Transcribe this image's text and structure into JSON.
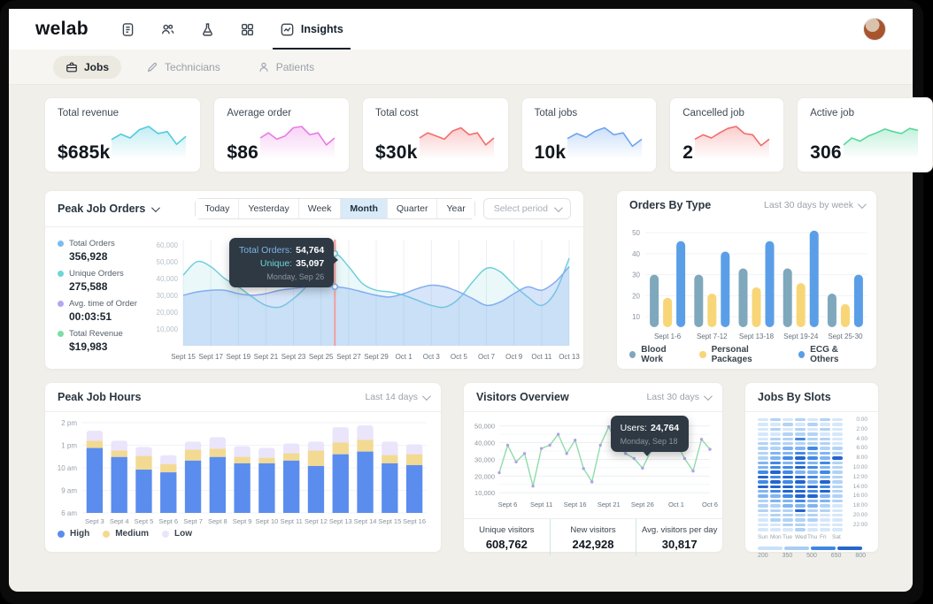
{
  "header": {
    "logo": "welab",
    "insights_label": "Insights"
  },
  "tabs": {
    "jobs": "Jobs",
    "technicians": "Technicians",
    "patients": "Patients"
  },
  "stats": [
    {
      "label": "Total revenue",
      "value": "$685k",
      "color": "#4FCBDE",
      "spark": [
        45,
        62,
        50,
        76,
        86,
        64,
        70,
        30,
        55
      ]
    },
    {
      "label": "Average order",
      "value": "$86",
      "color": "#E87BE4",
      "spark": [
        50,
        66,
        46,
        56,
        82,
        86,
        60,
        66,
        28,
        50
      ]
    },
    {
      "label": "Total cost",
      "value": "$30k",
      "color": "#F26D6D",
      "spark": [
        50,
        66,
        56,
        46,
        72,
        82,
        60,
        66,
        28,
        50
      ]
    },
    {
      "label": "Total jobs",
      "value": "10k",
      "color": "#6CA4F0",
      "spark": [
        48,
        64,
        52,
        72,
        82,
        60,
        66,
        24,
        46
      ]
    },
    {
      "label": "Cancelled job",
      "value": "2",
      "color": "#F26D6D",
      "spark": [
        46,
        60,
        50,
        66,
        80,
        86,
        64,
        60,
        26,
        46
      ]
    },
    {
      "label": "Active job",
      "value": "306",
      "color": "#59D69C",
      "spark": [
        28,
        50,
        40,
        56,
        66,
        78,
        70,
        64,
        80,
        74
      ]
    }
  ],
  "peak_job_orders": {
    "title": "Peak Job Orders",
    "periods": [
      "Today",
      "Yesterday",
      "Week",
      "Month",
      "Quarter",
      "Year"
    ],
    "active_period": "Month",
    "select_period": "Select period",
    "legend": [
      {
        "label": "Total Orders",
        "value": "356,928",
        "color": "#7CBCEC"
      },
      {
        "label": "Unique Orders",
        "value": "275,588",
        "color": "#6ED6D6"
      },
      {
        "label": "Avg. time of Order",
        "value": "00:03:51",
        "color": "#B5A6F2"
      },
      {
        "label": "Total Revenue",
        "value": "$19,983",
        "color": "#7FDCA4"
      }
    ],
    "tooltip": {
      "row1_label": "Total Orders:",
      "row1_value": "54,764",
      "row2_label": "Unique:",
      "row2_value": "35,097",
      "date": "Monday, Sep 26"
    }
  },
  "orders_by_type": {
    "title": "Orders By Type",
    "range_label": "Last 30 days by week"
  },
  "peak_job_hours": {
    "title": "Peak Job Hours",
    "range_label": "Last 14 days"
  },
  "visitors_overview": {
    "title": "Visitors Overview",
    "range_label": "Last 30 days",
    "tooltip": {
      "row1_label": "Users:",
      "row1_value": "24,764",
      "date": "Monday, Sep 18"
    },
    "footer": [
      {
        "label": "Unique visitors",
        "value": "608,762"
      },
      {
        "label": "New visitors",
        "value": "242,928"
      },
      {
        "label": "Avg. visitors per day",
        "value": "30,817"
      }
    ]
  },
  "jobs_by_slots": {
    "title": "Jobs By Slots"
  },
  "chart_data": [
    {
      "id": "peak-job-orders",
      "type": "area",
      "x_labels": [
        "Sept 15",
        "Sept 17",
        "Sept 19",
        "Sept 21",
        "Sept 23",
        "Sept 25",
        "Sept 27",
        "Sept 29",
        "Oct 1",
        "Oct 3",
        "Oct 5",
        "Oct 7",
        "Oct 9",
        "Oct 11",
        "Oct 13"
      ],
      "yticks": [
        10000,
        20000,
        30000,
        40000,
        50000,
        60000
      ],
      "ylim": [
        0,
        62000
      ],
      "marker_index": 11,
      "marker_color": "#F59C9C",
      "series": [
        {
          "name": "Total Orders",
          "color": "#6FCFDA",
          "fill": "rgba(111,207,218,0.15)",
          "values": [
            42000,
            50000,
            47000,
            40000,
            35000,
            29000,
            24000,
            23000,
            28000,
            36000,
            48000,
            54764,
            47000,
            37000,
            33000,
            32000,
            30000,
            27000,
            24000,
            23000,
            28000,
            38000,
            46000,
            44000,
            36000,
            29000,
            24000,
            32000,
            52000
          ]
        },
        {
          "name": "Unique Orders",
          "color": "#84ADF0",
          "fill": "rgba(132,173,240,0.32)",
          "values": [
            30000,
            32000,
            33000,
            33000,
            31000,
            30000,
            31000,
            33000,
            34000,
            35000,
            35000,
            35097,
            34000,
            32000,
            30000,
            29000,
            31000,
            34000,
            36000,
            35000,
            32000,
            28000,
            24000,
            26000,
            31000,
            35000,
            33000,
            38000,
            47000
          ]
        }
      ]
    },
    {
      "id": "orders-by-type",
      "type": "bar",
      "categories": [
        "Sept 1-6",
        "Sept 7-12",
        "Sept 13-18",
        "Sept 19-24",
        "Sept 25-30"
      ],
      "yticks": [
        10,
        20,
        30,
        40,
        50
      ],
      "ylim": [
        5,
        53
      ],
      "series": [
        {
          "name": "Blood Work",
          "color": "#7FA8BD",
          "values": [
            30,
            30,
            33,
            33,
            21
          ]
        },
        {
          "name": "Personal Packages",
          "color": "#F8D678",
          "values": [
            19,
            21,
            24,
            26,
            16
          ]
        },
        {
          "name": "ECG & Others",
          "color": "#5B9EE8",
          "values": [
            46,
            41,
            46,
            51,
            30
          ]
        }
      ]
    },
    {
      "id": "peak-job-hours",
      "type": "stacked-bar",
      "categories": [
        "Sept 3",
        "Sept 4",
        "Sept 5",
        "Sept 6",
        "Sept 7",
        "Sept 8",
        "Sept 9",
        "Sept 10",
        "Sept 11",
        "Sept 12",
        "Sept 13",
        "Sept 14",
        "Sept 15",
        "Sept 16"
      ],
      "y_labels": [
        "2 pm",
        "1 pm",
        "10 am",
        "9 am",
        "6 am"
      ],
      "series": [
        {
          "name": "High",
          "color": "#5B8DEE",
          "values": [
            72,
            62,
            48,
            45,
            58,
            62,
            55,
            55,
            58,
            52,
            65,
            68,
            55,
            53
          ]
        },
        {
          "name": "Medium",
          "color": "#F3DA93",
          "values": [
            8,
            7,
            15,
            9,
            12,
            9,
            7,
            6,
            8,
            17,
            13,
            13,
            9,
            12
          ]
        },
        {
          "name": "Low",
          "color": "#EAE5FA",
          "values": [
            11,
            11,
            10,
            10,
            9,
            13,
            12,
            11,
            11,
            10,
            17,
            16,
            15,
            11
          ]
        }
      ]
    },
    {
      "id": "visitors-overview",
      "type": "line",
      "x_labels": [
        "Sept 6",
        "Sept 11",
        "Sept 16",
        "Sept 21",
        "Sept 26",
        "Oct 1",
        "Oct 6"
      ],
      "yticks": [
        10000,
        20000,
        30000,
        40000,
        50000
      ],
      "ylim": [
        8000,
        53000
      ],
      "line_color": "#8FDCA8",
      "point_color": "#B49EE8",
      "values": [
        22000,
        38500,
        28500,
        33500,
        14000,
        36500,
        38500,
        45000,
        33500,
        41500,
        24500,
        16500,
        38500,
        49500,
        38500,
        33500,
        30500,
        24764,
        35000,
        36500,
        36000,
        40000,
        30500,
        23000,
        42000,
        36000
      ]
    },
    {
      "id": "jobs-by-slots",
      "type": "heatmap",
      "days": [
        "Sun",
        "Mon",
        "Tue",
        "Wed",
        "Thu",
        "Fri",
        "Sat"
      ],
      "hour_labels": [
        "0:00",
        "2:00",
        "4:00",
        "6:00",
        "8:00",
        "10:00",
        "12:00",
        "14:00",
        "16:00",
        "18:00",
        "20:00",
        "22:00"
      ],
      "scale": {
        "stops": [
          "200",
          "350",
          "500",
          "650",
          "800"
        ],
        "colors": [
          "#C9E1F9",
          "#A9CDF3",
          "#3F87E4",
          "#2566CE"
        ]
      },
      "values": [
        [
          250,
          300,
          250,
          350,
          250,
          300,
          250
        ],
        [
          220,
          250,
          300,
          250,
          300,
          250,
          220
        ],
        [
          250,
          300,
          250,
          300,
          250,
          300,
          250
        ],
        [
          220,
          250,
          300,
          350,
          300,
          250,
          220
        ],
        [
          250,
          300,
          350,
          650,
          300,
          350,
          250
        ],
        [
          300,
          350,
          400,
          350,
          400,
          300,
          250
        ],
        [
          300,
          400,
          450,
          500,
          650,
          400,
          300
        ],
        [
          350,
          450,
          500,
          650,
          500,
          450,
          300
        ],
        [
          400,
          500,
          650,
          700,
          650,
          500,
          700
        ],
        [
          450,
          650,
          500,
          650,
          500,
          650,
          350
        ],
        [
          500,
          550,
          650,
          700,
          650,
          450,
          300
        ],
        [
          650,
          700,
          650,
          500,
          450,
          650,
          350
        ],
        [
          700,
          650,
          700,
          800,
          650,
          500,
          300
        ],
        [
          650,
          700,
          650,
          700,
          500,
          800,
          350
        ],
        [
          700,
          800,
          700,
          650,
          700,
          650,
          400
        ],
        [
          500,
          650,
          700,
          800,
          650,
          700,
          350
        ],
        [
          450,
          500,
          650,
          700,
          800,
          500,
          300
        ],
        [
          400,
          450,
          500,
          650,
          500,
          450,
          300
        ],
        [
          350,
          400,
          450,
          500,
          450,
          400,
          250
        ],
        [
          300,
          350,
          400,
          700,
          350,
          300,
          250
        ],
        [
          250,
          300,
          350,
          400,
          300,
          250,
          220
        ],
        [
          250,
          300,
          300,
          350,
          300,
          250,
          220
        ],
        [
          220,
          250,
          300,
          300,
          250,
          220,
          220
        ],
        [
          220,
          250,
          250,
          300,
          250,
          220,
          200
        ]
      ]
    }
  ]
}
